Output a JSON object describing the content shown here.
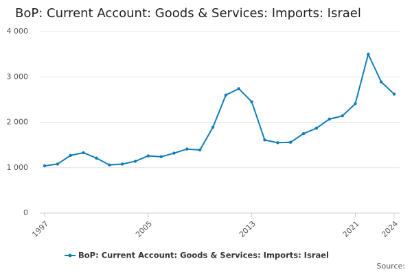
{
  "chart_data": {
    "type": "line",
    "title": "BoP: Current Account: Goods & Services: Imports: Israel",
    "x": [
      1997,
      1998,
      1999,
      2000,
      2001,
      2002,
      2003,
      2004,
      2005,
      2006,
      2007,
      2008,
      2009,
      2010,
      2011,
      2012,
      2013,
      2014,
      2015,
      2016,
      2017,
      2018,
      2019,
      2020,
      2021,
      2022,
      2023,
      2024
    ],
    "series": [
      {
        "name": "BoP: Current Account: Goods & Services: Imports: Israel",
        "color": "#0f7cb6",
        "values": [
          1040,
          1080,
          1270,
          1330,
          1210,
          1060,
          1080,
          1140,
          1260,
          1240,
          1320,
          1410,
          1390,
          1890,
          2600,
          2740,
          2450,
          1610,
          1550,
          1560,
          1750,
          1870,
          2070,
          2140,
          2410,
          3500,
          2890,
          2620
        ]
      }
    ],
    "xlim": [
      1997,
      2024
    ],
    "xticks": [
      1997,
      2005,
      2013,
      2021,
      2024
    ],
    "ylim": [
      0,
      4000
    ],
    "yticks": [
      0,
      {
        "value": 1000,
        "label": "1 000"
      },
      {
        "value": 2000,
        "label": "2 000"
      },
      {
        "value": 3000,
        "label": "3 000"
      },
      {
        "value": 4000,
        "label": "4 000"
      }
    ],
    "grid": true,
    "source": "Source:"
  }
}
